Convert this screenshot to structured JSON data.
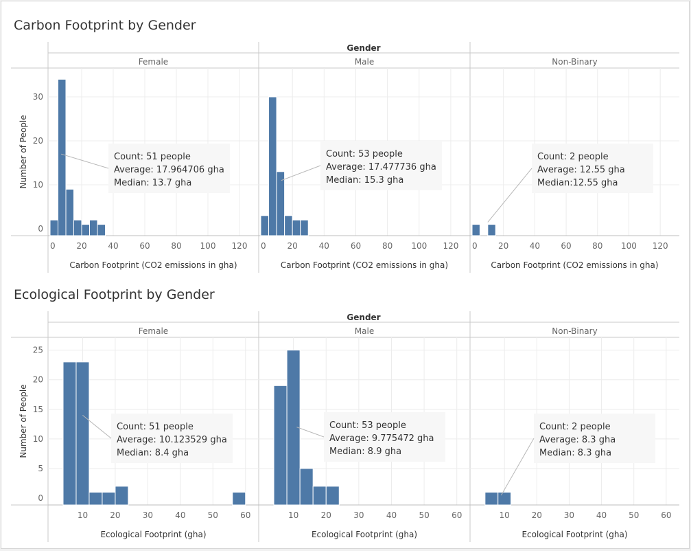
{
  "chart_data": [
    {
      "type": "bar",
      "title": "Carbon Footprint by Gender",
      "column_header": "Gender",
      "xlabel": "Carbon Footprint (CO2 emissions in gha)",
      "ylabel": "Number of People",
      "xlim": [
        0,
        130
      ],
      "ylim": [
        0,
        35
      ],
      "bin_width": 5,
      "x_ticks": [
        0,
        20,
        40,
        60,
        80,
        100,
        120
      ],
      "y_ticks": [
        0,
        10,
        20,
        30
      ],
      "facets": [
        {
          "name": "Female",
          "bins": [
            {
              "x": 0,
              "count": 2
            },
            {
              "x": 5,
              "count": 34
            },
            {
              "x": 10,
              "count": 9
            },
            {
              "x": 15,
              "count": 2
            },
            {
              "x": 20,
              "count": 1
            },
            {
              "x": 25,
              "count": 2
            },
            {
              "x": 30,
              "count": 1
            }
          ],
          "annotation": {
            "lines": [
              "Count: 51 people",
              "Average: 17.964706 gha",
              "Median: 13.7 gha"
            ],
            "target": [
              7,
              17
            ]
          }
        },
        {
          "name": "Male",
          "bins": [
            {
              "x": 0,
              "count": 3
            },
            {
              "x": 5,
              "count": 30
            },
            {
              "x": 10,
              "count": 13
            },
            {
              "x": 15,
              "count": 3
            },
            {
              "x": 20,
              "count": 2
            },
            {
              "x": 25,
              "count": 2
            }
          ],
          "annotation": {
            "lines": [
              "Count: 53 people",
              "Average: 17.477736 gha",
              "Median: 15.3 gha"
            ],
            "target": [
              13,
              11
            ]
          }
        },
        {
          "name": "Non-Binary",
          "bins": [
            {
              "x": 0,
              "count": 1
            },
            {
              "x": 10,
              "count": 1
            }
          ],
          "annotation": {
            "lines": [
              "Count: 2 people",
              "Average: 12.55 gha",
              "Median:12.55 gha"
            ],
            "target": [
              10,
              1.5
            ]
          }
        }
      ]
    },
    {
      "type": "bar",
      "title": "Ecological Footprint by Gender",
      "column_header": "Gender",
      "xlabel": "Ecological Footprint (gha)",
      "ylabel": "Number of People",
      "xlim": [
        0,
        63
      ],
      "ylim": [
        0,
        26
      ],
      "bin_width": 4,
      "x_ticks": [
        10,
        20,
        30,
        40,
        50,
        60
      ],
      "y_ticks": [
        0,
        5,
        10,
        15,
        20,
        25
      ],
      "facets": [
        {
          "name": "Female",
          "bins": [
            {
              "x": 4,
              "count": 23
            },
            {
              "x": 8,
              "count": 23
            },
            {
              "x": 12,
              "count": 1
            },
            {
              "x": 16,
              "count": 1
            },
            {
              "x": 20,
              "count": 2
            },
            {
              "x": 56,
              "count": 1
            }
          ],
          "annotation": {
            "lines": [
              "Count: 51 people",
              "Average: 10.123529 gha",
              "Median: 8.4 gha"
            ],
            "target": [
              10,
              14
            ]
          }
        },
        {
          "name": "Male",
          "bins": [
            {
              "x": 4,
              "count": 19
            },
            {
              "x": 8,
              "count": 25
            },
            {
              "x": 12,
              "count": 5
            },
            {
              "x": 16,
              "count": 2
            },
            {
              "x": 20,
              "count": 2
            }
          ],
          "annotation": {
            "lines": [
              "Count: 53 people",
              "Average: 9.775472 gha",
              "Median: 8.9 gha"
            ],
            "target": [
              11,
              12
            ]
          }
        },
        {
          "name": "Non-Binary",
          "bins": [
            {
              "x": 4,
              "count": 1
            },
            {
              "x": 8,
              "count": 1
            }
          ],
          "annotation": {
            "lines": [
              "Count: 2 people",
              "Average: 8.3 gha",
              "Median: 8.3 gha"
            ],
            "target": [
              9,
              0.5
            ]
          }
        }
      ]
    }
  ]
}
